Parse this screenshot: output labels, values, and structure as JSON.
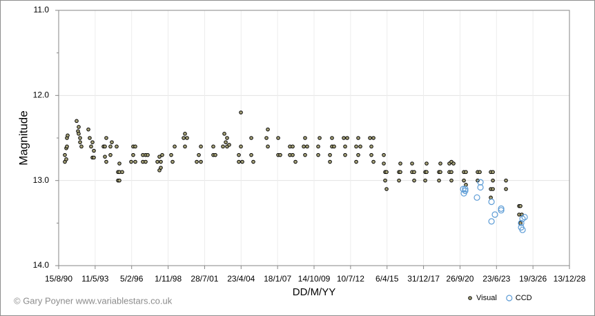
{
  "chart_data": {
    "type": "scatter",
    "x_label": "DD/M/YY",
    "y_label": "Magnitude",
    "credit": "© Gary Poyner  www.variablestars.co.uk",
    "xlim": [
      33100,
      47100
    ],
    "xticks": [
      {
        "value": 33100,
        "label": "15/8/90"
      },
      {
        "value": 34100,
        "label": "11/5/93"
      },
      {
        "value": 35100,
        "label": "5/2/96"
      },
      {
        "value": 36100,
        "label": "1/11/98"
      },
      {
        "value": 37100,
        "label": "28/7/01"
      },
      {
        "value": 38100,
        "label": "23/4/04"
      },
      {
        "value": 39100,
        "label": "18/1/07"
      },
      {
        "value": 40100,
        "label": "14/10/09"
      },
      {
        "value": 41100,
        "label": "10/7/12"
      },
      {
        "value": 42100,
        "label": "6/4/15"
      },
      {
        "value": 43100,
        "label": "31/12/17"
      },
      {
        "value": 44100,
        "label": "26/9/20"
      },
      {
        "value": 45100,
        "label": "23/6/23"
      },
      {
        "value": 46100,
        "label": "19/3/26"
      },
      {
        "value": 47100,
        "label": "13/12/28"
      }
    ],
    "ylim": [
      11,
      14
    ],
    "y_inverted": true,
    "yticks": [
      {
        "value": 11,
        "label": "11.0"
      },
      {
        "value": 12,
        "label": "12.0"
      },
      {
        "value": 13,
        "label": "13.0"
      },
      {
        "value": 14,
        "label": "14.0"
      }
    ],
    "yminorticks": [
      11.5,
      12.5,
      13.5
    ],
    "grid": true,
    "legend": "bottom-right",
    "series": [
      {
        "name": "Visual",
        "color": "#a8a47a",
        "filled": true,
        "x": [
          33270,
          33270,
          33308,
          33308,
          33327,
          33327,
          33346,
          33592,
          33630,
          33649,
          33649,
          33687,
          33687,
          33724,
          33914,
          33951,
          33989,
          34027,
          34027,
          34065,
          34065,
          34330,
          34368,
          34368,
          34405,
          34405,
          34519,
          34519,
          34557,
          34689,
          34727,
          34727,
          34765,
          34765,
          34765,
          34841,
          35087,
          35143,
          35143,
          35200,
          35200,
          35408,
          35408,
          35484,
          35484,
          35541,
          35806,
          35862,
          35862,
          35900,
          35900,
          35938,
          36184,
          36222,
          36279,
          36525,
          36562,
          36562,
          36619,
          36884,
          36941,
          36998,
          36998,
          37338,
          37338,
          37395,
          37603,
          37641,
          37679,
          37716,
          37716,
          37773,
          38038,
          38038,
          38095,
          38095,
          38133,
          38379,
          38379,
          38435,
          38795,
          38833,
          38833,
          39117,
          39117,
          39173,
          39438,
          39438,
          39514,
          39514,
          39590,
          39817,
          39854,
          39854,
          39911,
          40214,
          40214,
          40252,
          40536,
          40536,
          40592,
          40592,
          40649,
          40914,
          40952,
          40952,
          41009,
          41255,
          41255,
          41311,
          41311,
          41368,
          41633,
          41671,
          41671,
          41728,
          41728,
          42011,
          42011,
          42049,
          42049,
          42087,
          42087,
          42428,
          42428,
          42465,
          42465,
          42787,
          42787,
          42844,
          42844,
          43147,
          43147,
          43184,
          43184,
          43525,
          43525,
          43562,
          43562,
          43808,
          43808,
          43865,
          43865,
          43865,
          43922,
          44206,
          44206,
          44262,
          44262,
          44584,
          44584,
          44641,
          44944,
          44944,
          44944,
          45001,
          45001,
          45001,
          45360,
          45360,
          45720,
          45720,
          45757,
          45757,
          45795
        ],
        "values": [
          12.7,
          12.78,
          12.62,
          12.75,
          12.6,
          12.5,
          12.47,
          12.3,
          12.42,
          12.37,
          12.45,
          12.5,
          12.55,
          12.6,
          12.4,
          12.5,
          12.6,
          12.73,
          12.55,
          12.65,
          12.73,
          12.6,
          12.6,
          12.72,
          12.5,
          12.78,
          12.6,
          12.7,
          12.55,
          12.6,
          13.0,
          12.9,
          12.8,
          12.9,
          13.0,
          12.9,
          12.78,
          12.6,
          12.7,
          12.78,
          12.6,
          12.7,
          12.78,
          12.7,
          12.78,
          12.7,
          12.78,
          12.88,
          12.72,
          12.78,
          12.85,
          12.7,
          12.7,
          12.78,
          12.6,
          12.5,
          12.45,
          12.6,
          12.5,
          12.78,
          12.7,
          12.6,
          12.78,
          12.6,
          12.7,
          12.7,
          12.6,
          12.45,
          12.55,
          12.5,
          12.6,
          12.58,
          12.78,
          12.7,
          12.2,
          12.6,
          12.78,
          12.5,
          12.7,
          12.78,
          12.5,
          12.4,
          12.6,
          12.7,
          12.5,
          12.7,
          12.6,
          12.7,
          12.7,
          12.6,
          12.78,
          12.6,
          12.5,
          12.7,
          12.6,
          12.6,
          12.7,
          12.5,
          12.7,
          12.78,
          12.5,
          12.6,
          12.6,
          12.5,
          12.6,
          12.7,
          12.5,
          12.6,
          12.78,
          12.5,
          12.7,
          12.6,
          12.5,
          12.6,
          12.7,
          12.78,
          12.5,
          12.8,
          12.7,
          12.9,
          13.0,
          13.1,
          12.9,
          12.9,
          13.0,
          12.8,
          12.9,
          12.9,
          12.8,
          13.0,
          12.9,
          12.9,
          13.0,
          12.8,
          12.9,
          12.9,
          13.0,
          12.8,
          12.9,
          12.8,
          12.9,
          12.78,
          12.9,
          13.0,
          12.8,
          12.9,
          13.0,
          12.9,
          13.05,
          12.9,
          13.0,
          12.9,
          12.9,
          13.1,
          13.2,
          12.9,
          13.0,
          13.1,
          13.0,
          13.1,
          13.3,
          13.4,
          13.3,
          13.5,
          13.4
        ]
      },
      {
        "name": "CCD",
        "color": "#5b9bd5",
        "filled": false,
        "x": [
          44187,
          44206,
          44243,
          44243,
          44565,
          44660,
          44660,
          44963,
          44963,
          45057,
          45228,
          45228,
          45776,
          45776,
          45814,
          45814,
          45871
        ],
        "values": [
          13.1,
          13.15,
          13.12,
          13.1,
          13.2,
          13.08,
          13.02,
          13.48,
          13.25,
          13.4,
          13.35,
          13.33,
          13.5,
          13.55,
          13.45,
          13.58,
          13.43
        ]
      }
    ]
  }
}
